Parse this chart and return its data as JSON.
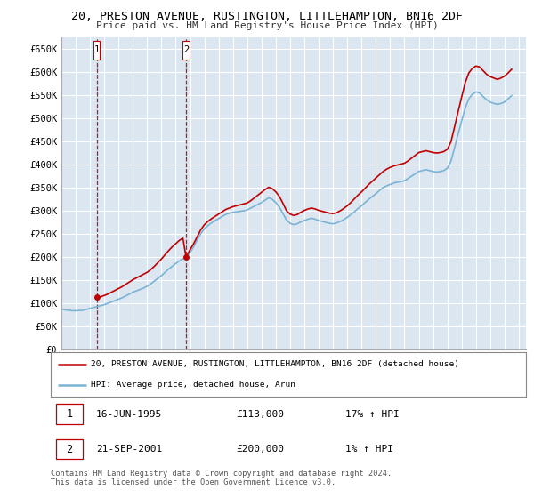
{
  "title": "20, PRESTON AVENUE, RUSTINGTON, LITTLEHAMPTON, BN16 2DF",
  "subtitle": "Price paid vs. HM Land Registry's House Price Index (HPI)",
  "ylim": [
    0,
    675000
  ],
  "yticks": [
    0,
    50000,
    100000,
    150000,
    200000,
    250000,
    300000,
    350000,
    400000,
    450000,
    500000,
    550000,
    600000,
    650000
  ],
  "ytick_labels": [
    "£0",
    "£50K",
    "£100K",
    "£150K",
    "£200K",
    "£250K",
    "£300K",
    "£350K",
    "£400K",
    "£450K",
    "£500K",
    "£550K",
    "£600K",
    "£650K"
  ],
  "xlim_start": 1993.0,
  "xlim_end": 2025.5,
  "background_color": "#ffffff",
  "plot_bg_color": "#dce6f1",
  "grid_color": "#ffffff",
  "hpi_color": "#7ab3d4",
  "price_color": "#c00000",
  "legend_label_price": "20, PRESTON AVENUE, RUSTINGTON, LITTLEHAMPTON, BN16 2DF (detached house)",
  "legend_label_hpi": "HPI: Average price, detached house, Arun",
  "sale1_date": 1995.46,
  "sale1_price": 113000,
  "sale2_date": 2001.72,
  "sale2_price": 200000,
  "footer": "Contains HM Land Registry data © Crown copyright and database right 2024.\nThis data is licensed under the Open Government Licence v3.0.",
  "hpi_dates": [
    1993.0,
    1993.25,
    1993.5,
    1993.75,
    1994.0,
    1994.25,
    1994.5,
    1994.75,
    1995.0,
    1995.25,
    1995.5,
    1995.75,
    1996.0,
    1996.25,
    1996.5,
    1996.75,
    1997.0,
    1997.25,
    1997.5,
    1997.75,
    1998.0,
    1998.25,
    1998.5,
    1998.75,
    1999.0,
    1999.25,
    1999.5,
    1999.75,
    2000.0,
    2000.25,
    2000.5,
    2000.75,
    2001.0,
    2001.25,
    2001.5,
    2001.75,
    2002.0,
    2002.25,
    2002.5,
    2002.75,
    2003.0,
    2003.25,
    2003.5,
    2003.75,
    2004.0,
    2004.25,
    2004.5,
    2004.75,
    2005.0,
    2005.25,
    2005.5,
    2005.75,
    2006.0,
    2006.25,
    2006.5,
    2006.75,
    2007.0,
    2007.25,
    2007.5,
    2007.75,
    2008.0,
    2008.25,
    2008.5,
    2008.75,
    2009.0,
    2009.25,
    2009.5,
    2009.75,
    2010.0,
    2010.25,
    2010.5,
    2010.75,
    2011.0,
    2011.25,
    2011.5,
    2011.75,
    2012.0,
    2012.25,
    2012.5,
    2012.75,
    2013.0,
    2013.25,
    2013.5,
    2013.75,
    2014.0,
    2014.25,
    2014.5,
    2014.75,
    2015.0,
    2015.25,
    2015.5,
    2015.75,
    2016.0,
    2016.25,
    2016.5,
    2016.75,
    2017.0,
    2017.25,
    2017.5,
    2017.75,
    2018.0,
    2018.25,
    2018.5,
    2018.75,
    2019.0,
    2019.25,
    2019.5,
    2019.75,
    2020.0,
    2020.25,
    2020.5,
    2020.75,
    2021.0,
    2021.25,
    2021.5,
    2021.75,
    2022.0,
    2022.25,
    2022.5,
    2022.75,
    2023.0,
    2023.25,
    2023.5,
    2023.75,
    2024.0,
    2024.25,
    2024.5
  ],
  "hpi_values": [
    88000,
    86000,
    85000,
    84000,
    84000,
    84500,
    85000,
    87000,
    89000,
    91000,
    93000,
    95000,
    97000,
    100000,
    103000,
    106000,
    109000,
    112000,
    116000,
    120000,
    124000,
    127000,
    130000,
    133000,
    137000,
    142000,
    148000,
    154000,
    160000,
    167000,
    174000,
    180000,
    186000,
    192000,
    196000,
    200000,
    210000,
    222000,
    237000,
    251000,
    261000,
    268000,
    274000,
    279000,
    283000,
    288000,
    292000,
    295000,
    297000,
    298000,
    299000,
    300000,
    302000,
    306000,
    310000,
    314000,
    318000,
    323000,
    328000,
    325000,
    318000,
    308000,
    294000,
    280000,
    273000,
    270000,
    272000,
    276000,
    279000,
    282000,
    284000,
    282000,
    279000,
    277000,
    275000,
    273000,
    272000,
    274000,
    277000,
    281000,
    286000,
    292000,
    298000,
    305000,
    311000,
    318000,
    325000,
    331000,
    337000,
    344000,
    350000,
    354000,
    357000,
    360000,
    362000,
    363000,
    365000,
    370000,
    375000,
    380000,
    385000,
    387000,
    389000,
    387000,
    385000,
    384000,
    385000,
    387000,
    392000,
    407000,
    436000,
    466000,
    494000,
    522000,
    542000,
    552000,
    557000,
    555000,
    547000,
    540000,
    535000,
    532000,
    530000,
    532000,
    535000,
    542000,
    549000
  ],
  "price_line_dates": [
    1995.46,
    1995.6,
    1995.75,
    1996.0,
    1996.25,
    1996.5,
    1996.75,
    1997.0,
    1997.25,
    1997.5,
    1997.75,
    1998.0,
    1998.25,
    1998.5,
    1998.75,
    1999.0,
    1999.25,
    1999.5,
    1999.75,
    2000.0,
    2000.25,
    2000.5,
    2000.75,
    2001.0,
    2001.25,
    2001.5,
    2001.72,
    2002.0,
    2002.25,
    2002.5,
    2002.75,
    2003.0,
    2003.25,
    2003.5,
    2003.75,
    2004.0,
    2004.25,
    2004.5,
    2004.75,
    2005.0,
    2005.25,
    2005.5,
    2005.75,
    2006.0,
    2006.25,
    2006.5,
    2006.75,
    2007.0,
    2007.25,
    2007.5,
    2007.75,
    2008.0,
    2008.25,
    2008.5,
    2008.75,
    2009.0,
    2009.25,
    2009.5,
    2009.75,
    2010.0,
    2010.25,
    2010.5,
    2010.75,
    2011.0,
    2011.25,
    2011.5,
    2011.75,
    2012.0,
    2012.25,
    2012.5,
    2012.75,
    2013.0,
    2013.25,
    2013.5,
    2013.75,
    2014.0,
    2014.25,
    2014.5,
    2014.75,
    2015.0,
    2015.25,
    2015.5,
    2015.75,
    2016.0,
    2016.25,
    2016.5,
    2016.75,
    2017.0,
    2017.25,
    2017.5,
    2017.75,
    2018.0,
    2018.25,
    2018.5,
    2018.75,
    2019.0,
    2019.25,
    2019.5,
    2019.75,
    2020.0,
    2020.25,
    2020.5,
    2020.75,
    2021.0,
    2021.25,
    2021.5,
    2021.75,
    2022.0,
    2022.25,
    2022.5,
    2022.75,
    2023.0,
    2023.25,
    2023.5,
    2023.75,
    2024.0,
    2024.25,
    2024.5
  ],
  "price_line_values": [
    113000,
    113500,
    114000,
    117000,
    120000,
    124000,
    128000,
    132000,
    136000,
    141000,
    146000,
    151000,
    155000,
    159000,
    163000,
    167000,
    173000,
    180000,
    188000,
    196000,
    205000,
    214000,
    222000,
    229000,
    236000,
    241000,
    200000,
    216000,
    229000,
    244000,
    259000,
    270000,
    277000,
    283000,
    288000,
    293000,
    298000,
    303000,
    306000,
    309000,
    311000,
    313000,
    315000,
    317000,
    322000,
    328000,
    334000,
    340000,
    346000,
    351000,
    348000,
    341000,
    331000,
    316000,
    300000,
    293000,
    290000,
    292000,
    297000,
    301000,
    304000,
    306000,
    304000,
    301000,
    299000,
    297000,
    295000,
    294000,
    296000,
    300000,
    305000,
    311000,
    318000,
    326000,
    334000,
    341000,
    349000,
    357000,
    364000,
    371000,
    378000,
    385000,
    390000,
    394000,
    397000,
    399000,
    401000,
    403000,
    408000,
    414000,
    420000,
    426000,
    428000,
    430000,
    428000,
    426000,
    425000,
    426000,
    428000,
    433000,
    449000,
    481000,
    514000,
    546000,
    577000,
    598000,
    608000,
    613000,
    611000,
    603000,
    595000,
    590000,
    587000,
    584000,
    587000,
    591000,
    598000,
    606000
  ],
  "vline1_x": 1995.46,
  "vline2_x": 2001.72
}
